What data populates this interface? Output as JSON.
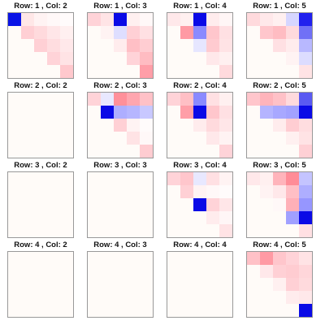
{
  "chart_data": {
    "type": "heatmap",
    "rows": 4,
    "cols": 4,
    "blank_color": "#fffbf8",
    "panels": [
      {
        "title": "Row: 1 , Col: 2",
        "cells": [
          [
            0,
            0,
            "#0a14e6"
          ],
          [
            0,
            1,
            "#ffe7e7"
          ],
          [
            0,
            2,
            "#fff3f3"
          ],
          [
            0,
            3,
            "#fff8f8"
          ],
          [
            0,
            4,
            "#fffbfb"
          ],
          [
            1,
            1,
            "#ffcfd4"
          ],
          [
            1,
            2,
            "#ffdadd"
          ],
          [
            1,
            3,
            "#ffe6e8"
          ],
          [
            1,
            4,
            "#fff0f0"
          ],
          [
            2,
            2,
            "#ffd0d5"
          ],
          [
            2,
            3,
            "#ffdde0"
          ],
          [
            2,
            4,
            "#ffe8ea"
          ],
          [
            3,
            3,
            "#ffd3d8"
          ],
          [
            3,
            4,
            "#ffe3e5"
          ],
          [
            4,
            4,
            "#ffc8cd"
          ]
        ]
      },
      {
        "title": "Row: 1 , Col: 3",
        "cells": [
          [
            0,
            0,
            "#ffd3d8"
          ],
          [
            0,
            1,
            "#ffe4e6"
          ],
          [
            0,
            2,
            "#0a0ae6"
          ],
          [
            0,
            3,
            "#fff0f0"
          ],
          [
            0,
            4,
            "#fff8f8"
          ],
          [
            1,
            1,
            "#fff3f3"
          ],
          [
            1,
            2,
            "#dedeff"
          ],
          [
            1,
            3,
            "#ffd0d5"
          ],
          [
            1,
            4,
            "#ffe0e3"
          ],
          [
            2,
            2,
            "#ffeced"
          ],
          [
            2,
            3,
            "#ffbfc5"
          ],
          [
            2,
            4,
            "#ffcdd2"
          ],
          [
            3,
            3,
            "#ffd3d8"
          ],
          [
            3,
            4,
            "#ffbcc2"
          ],
          [
            4,
            4,
            "#ff9ea8"
          ]
        ]
      },
      {
        "title": "Row: 1 , Col: 4",
        "cells": [
          [
            0,
            0,
            "#ffe8ea"
          ],
          [
            0,
            1,
            "#fff0f0"
          ],
          [
            0,
            2,
            "#0a0ae6"
          ],
          [
            0,
            3,
            "#ffeced"
          ],
          [
            0,
            4,
            "#fff6f6"
          ],
          [
            1,
            1,
            "#ff9aa4"
          ],
          [
            1,
            2,
            "#8a8aff"
          ],
          [
            1,
            3,
            "#ffc6cc"
          ],
          [
            1,
            4,
            "#ffe0e3"
          ],
          [
            2,
            2,
            "#e6e6ff"
          ],
          [
            2,
            3,
            "#ffcbd0"
          ],
          [
            2,
            4,
            "#ffe3e5"
          ],
          [
            3,
            3,
            "#ffe8ea"
          ],
          [
            3,
            4,
            "#fff0f0"
          ],
          [
            4,
            4,
            "#ffdadd"
          ]
        ]
      },
      {
        "title": "Row: 1 , Col: 5",
        "cells": [
          [
            0,
            0,
            "#ffdadd"
          ],
          [
            0,
            1,
            "#ffe8ea"
          ],
          [
            0,
            2,
            "#fff0f0"
          ],
          [
            0,
            3,
            "#d6d6ff"
          ],
          [
            0,
            4,
            "#2020ee"
          ],
          [
            1,
            1,
            "#ffc6cc"
          ],
          [
            1,
            2,
            "#ffbcc2"
          ],
          [
            1,
            3,
            "#ffdadd"
          ],
          [
            1,
            4,
            "#7070f6"
          ],
          [
            2,
            2,
            "#ffe0e3"
          ],
          [
            2,
            3,
            "#ffeced"
          ],
          [
            2,
            4,
            "#b8b8ff"
          ],
          [
            3,
            3,
            "#fff3f3"
          ],
          [
            3,
            4,
            "#dcdcff"
          ],
          [
            4,
            4,
            "#ffe3e5"
          ]
        ]
      },
      {
        "title": "Row: 2 , Col: 2",
        "cells": []
      },
      {
        "title": "Row: 2 , Col: 3",
        "cells": [
          [
            0,
            0,
            "#ffd3d8"
          ],
          [
            0,
            1,
            "#e8e8ff"
          ],
          [
            0,
            2,
            "#ff909a"
          ],
          [
            0,
            3,
            "#ffa6af"
          ],
          [
            0,
            4,
            "#ffc1c7"
          ],
          [
            1,
            1,
            "#0a0ae6"
          ],
          [
            1,
            2,
            "#aeaeff"
          ],
          [
            1,
            3,
            "#b6b6ff"
          ],
          [
            1,
            4,
            "#c8c8ff"
          ],
          [
            2,
            2,
            "#ffd0d5"
          ],
          [
            2,
            3,
            "#fff3f3"
          ],
          [
            2,
            4,
            "#fffbfb"
          ],
          [
            3,
            3,
            "#ffe3e5"
          ],
          [
            3,
            4,
            "#fff8f8"
          ],
          [
            4,
            4,
            "#ffccd1"
          ]
        ]
      },
      {
        "title": "Row: 2 , Col: 4",
        "cells": [
          [
            0,
            0,
            "#ffd3d8"
          ],
          [
            0,
            1,
            "#ffbfc5"
          ],
          [
            0,
            2,
            "#8a8aff"
          ],
          [
            0,
            3,
            "#ffe0e3"
          ],
          [
            0,
            4,
            "#fff0f0"
          ],
          [
            1,
            1,
            "#ff9ea8"
          ],
          [
            1,
            2,
            "#0a0ae6"
          ],
          [
            1,
            3,
            "#ffc6cc"
          ],
          [
            1,
            4,
            "#ffe0e3"
          ],
          [
            2,
            2,
            "#ffeced"
          ],
          [
            2,
            3,
            "#ffdadd"
          ],
          [
            2,
            4,
            "#ffe6e8"
          ],
          [
            3,
            3,
            "#ffe8ea"
          ],
          [
            3,
            4,
            "#fff3f3"
          ],
          [
            4,
            4,
            "#ffd3d8"
          ]
        ]
      },
      {
        "title": "Row: 2 , Col: 5",
        "cells": [
          [
            0,
            0,
            "#ffc6cc"
          ],
          [
            0,
            1,
            "#ffb4bb"
          ],
          [
            0,
            2,
            "#ffc1c7"
          ],
          [
            0,
            3,
            "#ffdadd"
          ],
          [
            0,
            4,
            "#5a5af2"
          ],
          [
            1,
            1,
            "#b4b4ff"
          ],
          [
            1,
            2,
            "#a8a8ff"
          ],
          [
            1,
            3,
            "#a2a2ff"
          ],
          [
            1,
            4,
            "#0a0ae6"
          ],
          [
            2,
            2,
            "#ffeced"
          ],
          [
            2,
            3,
            "#ffcdd2"
          ],
          [
            2,
            4,
            "#ffdde0"
          ],
          [
            3,
            3,
            "#fff0f0"
          ],
          [
            3,
            4,
            "#ffe3e5"
          ],
          [
            4,
            4,
            "#ffd0d5"
          ]
        ]
      },
      {
        "title": "Row: 3 , Col: 2",
        "cells": []
      },
      {
        "title": "Row: 3 , Col: 3",
        "cells": []
      },
      {
        "title": "Row: 3 , Col: 4",
        "cells": [
          [
            0,
            0,
            "#ffd3d8"
          ],
          [
            0,
            1,
            "#ffc6cc"
          ],
          [
            0,
            2,
            "#e8e8ff"
          ],
          [
            0,
            3,
            "#ffe0e3"
          ],
          [
            0,
            4,
            "#fff3f3"
          ],
          [
            1,
            1,
            "#ffd0d5"
          ],
          [
            1,
            2,
            "#fff3f3"
          ],
          [
            1,
            3,
            "#fff8f8"
          ],
          [
            1,
            4,
            "#fffbfb"
          ],
          [
            2,
            2,
            "#0a0ae6"
          ],
          [
            2,
            3,
            "#ffd3d8"
          ],
          [
            2,
            4,
            "#ffe6e8"
          ],
          [
            3,
            3,
            "#ffeced"
          ],
          [
            3,
            4,
            "#fff6f6"
          ],
          [
            4,
            4,
            "#ffe3e5"
          ]
        ]
      },
      {
        "title": "Row: 3 , Col: 5",
        "cells": [
          [
            0,
            0,
            "#ffe8ea"
          ],
          [
            0,
            1,
            "#fff0f0"
          ],
          [
            0,
            2,
            "#ffb4bb"
          ],
          [
            0,
            3,
            "#ff8c97"
          ],
          [
            0,
            4,
            "#c4c4ff"
          ],
          [
            1,
            1,
            "#fff3f3"
          ],
          [
            1,
            2,
            "#ffe8ea"
          ],
          [
            1,
            3,
            "#ffbfc5"
          ],
          [
            1,
            4,
            "#aeaeff"
          ],
          [
            2,
            2,
            "#fff8f8"
          ],
          [
            2,
            3,
            "#ffb0b8"
          ],
          [
            2,
            4,
            "#9696ff"
          ],
          [
            3,
            3,
            "#a0a0ff"
          ],
          [
            3,
            4,
            "#0a0ae6"
          ],
          [
            4,
            4,
            "#ffe0e3"
          ]
        ]
      },
      {
        "title": "Row: 4 , Col: 2",
        "cells": []
      },
      {
        "title": "Row: 4 , Col: 3",
        "cells": []
      },
      {
        "title": "Row: 4 , Col: 4",
        "cells": []
      },
      {
        "title": "Row: 4 , Col: 5",
        "cells": [
          [
            0,
            0,
            "#ffc1c7"
          ],
          [
            0,
            1,
            "#ff9aa4"
          ],
          [
            0,
            2,
            "#ffc6cc"
          ],
          [
            0,
            3,
            "#ffd3d8"
          ],
          [
            0,
            4,
            "#ffe3e5"
          ],
          [
            1,
            1,
            "#ffe8ea"
          ],
          [
            1,
            2,
            "#ffd0d5"
          ],
          [
            1,
            3,
            "#ffccd1"
          ],
          [
            1,
            4,
            "#ffd6da"
          ],
          [
            2,
            2,
            "#fff0f0"
          ],
          [
            2,
            3,
            "#ffd0d5"
          ],
          [
            2,
            4,
            "#ffdadd"
          ],
          [
            3,
            3,
            "#ffeced"
          ],
          [
            3,
            4,
            "#ffe8ea"
          ],
          [
            4,
            4,
            "#0a0ae6"
          ]
        ]
      }
    ]
  }
}
